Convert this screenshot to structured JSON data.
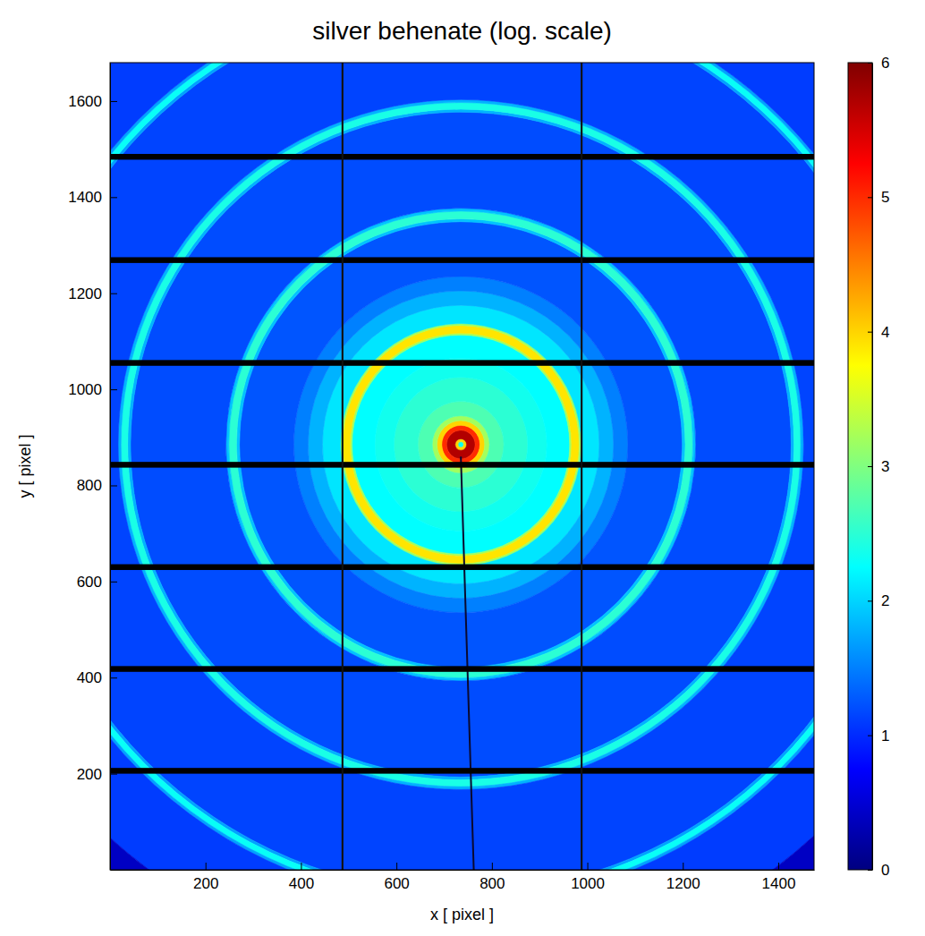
{
  "chart_data": {
    "type": "heatmap",
    "title": "silver behenate (log. scale)",
    "x_label": "x [ pixel ]",
    "y_label": "y [ pixel ]",
    "xlim": [
      0,
      1475
    ],
    "ylim": [
      0,
      1680
    ],
    "xticks": [
      200,
      400,
      600,
      800,
      1000,
      1200,
      1400
    ],
    "yticks": [
      200,
      400,
      600,
      800,
      1000,
      1200,
      1400,
      1600
    ],
    "center": [
      735,
      885
    ],
    "radial_profile": {
      "bins": [
        0,
        6,
        12,
        30,
        40,
        50,
        60,
        90,
        140,
        180,
        228,
        232,
        248,
        252,
        290,
        320,
        350,
        464,
        470,
        486,
        492,
        692,
        698,
        712,
        718,
        932,
        938,
        950,
        956,
        1100,
        1170
      ],
      "values": [
        2.3,
        4.0,
        5.7,
        5.0,
        4.0,
        3.2,
        2.7,
        2.5,
        2.35,
        2.25,
        3.2,
        3.9,
        3.2,
        2.1,
        1.8,
        1.5,
        1.25,
        1.9,
        2.5,
        1.9,
        1.2,
        1.8,
        2.4,
        1.8,
        1.15,
        1.7,
        2.3,
        1.7,
        1.1,
        0.4
      ]
    },
    "gaps": {
      "y": [
        206,
        418,
        630,
        843,
        1055,
        1269,
        1484
      ],
      "x": [
        487,
        988
      ]
    },
    "beamstop": {
      "x": [
        735,
        762
      ],
      "y": [
        860,
        0
      ]
    },
    "colorbar": {
      "range": [
        0,
        6
      ],
      "ticks": [
        0,
        1,
        2,
        3,
        4,
        5,
        6
      ]
    }
  }
}
